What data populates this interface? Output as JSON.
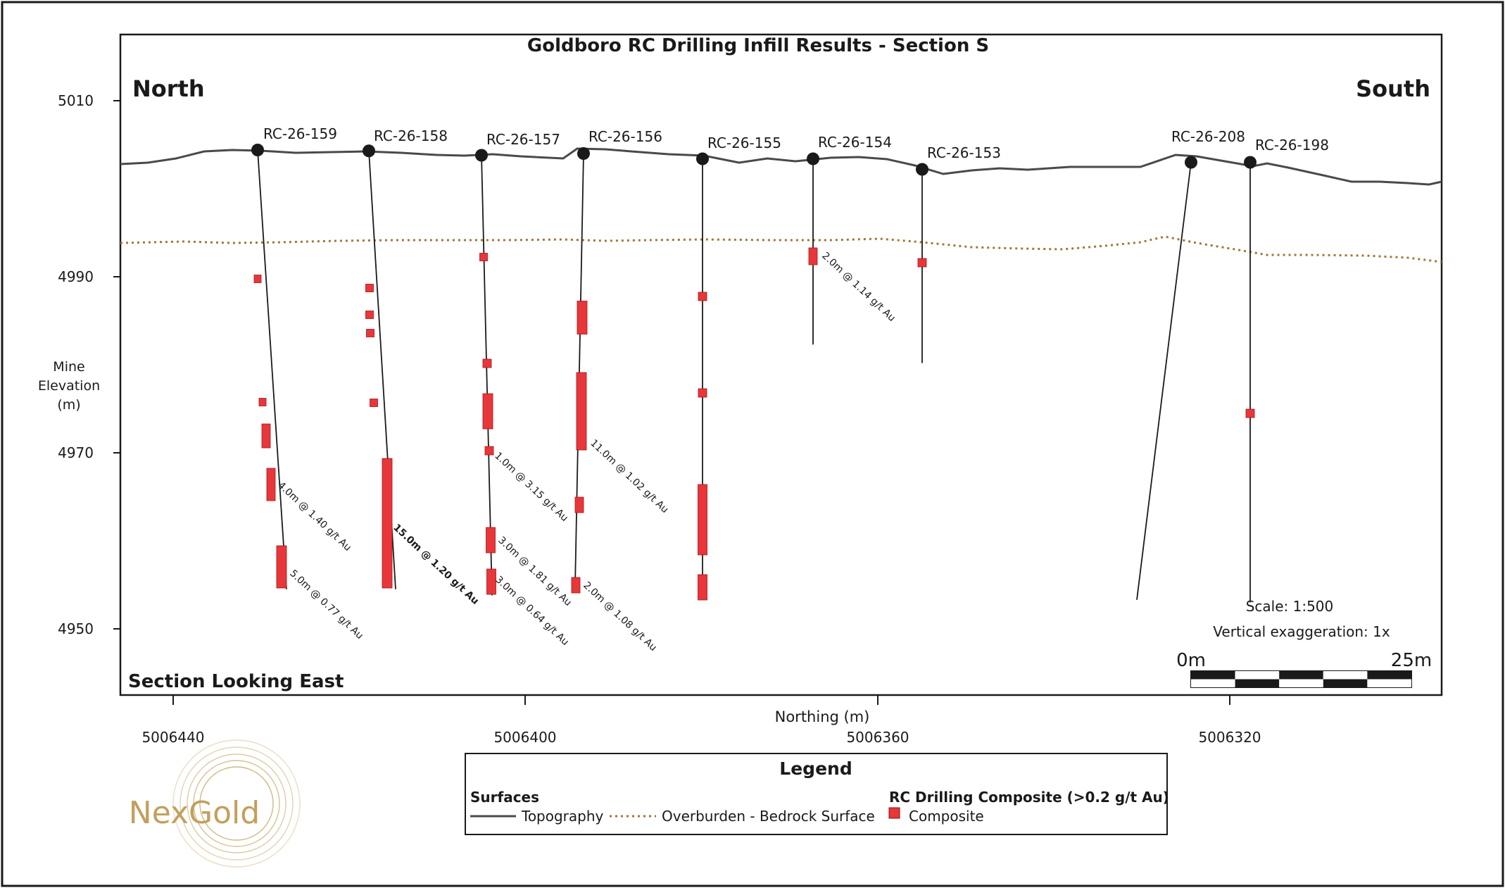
{
  "chart_data": {
    "type": "cross-section",
    "title": "Goldboro RC Drilling Infill Results - Section S",
    "direction_left": "North",
    "direction_right": "South",
    "view_label": "Section Looking East",
    "ylabel": "Mine Elevation (m)",
    "xlabel": "Northing (m)",
    "y_ticks": [
      "5010",
      "4990",
      "4970",
      "4950"
    ],
    "x_ticks": [
      "5006440",
      "5006400",
      "5006360",
      "5006320"
    ],
    "scale_text": "Scale: 1:500",
    "vertical_exaggeration_text": "Vertical exaggeration: 1x",
    "scalebar_start": "0m",
    "scalebar_end": "25m",
    "drillholes": [
      {
        "name": "RC-26-159",
        "collar_elev": 5004.4,
        "end_elev": 4954.5
      },
      {
        "name": "RC-26-158",
        "collar_elev": 5004.3,
        "end_elev": 4954.5
      },
      {
        "name": "RC-26-157",
        "collar_elev": 5003.8,
        "end_elev": 4953.8
      },
      {
        "name": "RC-26-156",
        "collar_elev": 5004.0,
        "end_elev": 4954.8
      },
      {
        "name": "RC-26-155",
        "collar_elev": 5003.4,
        "end_elev": 4953.5
      },
      {
        "name": "RC-26-154",
        "collar_elev": 5003.4,
        "end_elev": 4982.3
      },
      {
        "name": "RC-26-153",
        "collar_elev": 5002.2,
        "end_elev": 4980.2
      },
      {
        "name": "RC-26-208",
        "collar_elev": 5003.0,
        "end_elev": 4953.3
      },
      {
        "name": "RC-26-198",
        "collar_elev": 5003.0,
        "end_elev": 4953.0
      }
    ],
    "intercept_labels": [
      {
        "text": "4.0m @ 1.40 g/t Au",
        "bold": false
      },
      {
        "text": "5.0m @ 0.77 g/t Au",
        "bold": false
      },
      {
        "text": "15.0m @ 1.20 g/t Au",
        "bold": true
      },
      {
        "text": "1.0m @ 3.15 g/t Au",
        "bold": false
      },
      {
        "text": "3.0m @ 1.81 g/t Au",
        "bold": false
      },
      {
        "text": "3.0m @ 0.64 g/t Au",
        "bold": false
      },
      {
        "text": "11.0m @ 1.02 g/t Au",
        "bold": false
      },
      {
        "text": "2.0m @ 1.08 g/t Au",
        "bold": false
      },
      {
        "text": "2.0m @ 1.14 g/t Au",
        "bold": false
      }
    ]
  },
  "legend": {
    "title": "Legend",
    "surfaces_heading": "Surfaces",
    "topography_label": "Topography",
    "overburden_label": "Overburden - Bedrock Surface",
    "composite_heading": "RC Drilling Composite (>0.2 g/t Au)",
    "composite_label": "Composite"
  },
  "logo": {
    "text": "NexGold"
  },
  "colors": {
    "composite": "#e8363a",
    "topography": "#505050",
    "overburden": "#9b7a3a",
    "logo": "#c2a05c"
  }
}
